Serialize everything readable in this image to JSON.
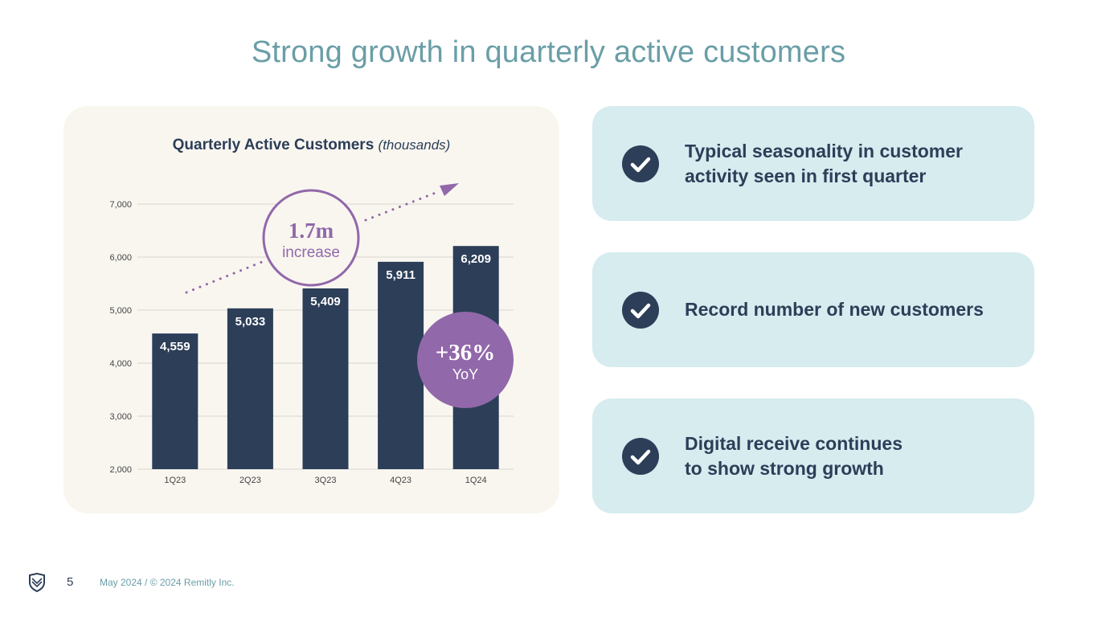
{
  "slide": {
    "title": "Strong growth in quarterly active customers"
  },
  "chart_data": {
    "type": "bar",
    "title": "Quarterly Active Customers",
    "title_unit": "(thousands)",
    "categories": [
      "1Q23",
      "2Q23",
      "3Q23",
      "4Q23",
      "1Q24"
    ],
    "values": [
      4559,
      5033,
      5409,
      5911,
      6209
    ],
    "value_labels": [
      "4,559",
      "5,033",
      "5,409",
      "5,911",
      "6,209"
    ],
    "ylim": [
      2000,
      7000
    ],
    "yticks": [
      2000,
      3000,
      4000,
      5000,
      6000,
      7000
    ],
    "ytick_labels": [
      "2,000",
      "3,000",
      "4,000",
      "5,000",
      "6,000",
      "7,000"
    ],
    "xlabel": "",
    "ylabel": "",
    "grid": true,
    "colors": {
      "bar": "#2c3e58",
      "accent": "#9168a9",
      "grid": "#d9d6d0",
      "tick": "#444444"
    },
    "annotations": [
      {
        "type": "increase",
        "value": "1.7m",
        "label": "increase"
      },
      {
        "type": "yoy",
        "value": "+36%",
        "label": "YoY"
      }
    ]
  },
  "highlights": [
    {
      "text": "Typical seasonality in customer\nactivity seen in first quarter",
      "icon": "check-icon"
    },
    {
      "text": "Record number of new customers",
      "icon": "check-icon"
    },
    {
      "text": "Digital receive continues\nto show strong growth",
      "icon": "check-icon"
    }
  ],
  "footer": {
    "page_number": "5",
    "text": "May 2024 / © 2024 Remitly Inc.",
    "logo_icon": "remitly-logo-icon"
  }
}
